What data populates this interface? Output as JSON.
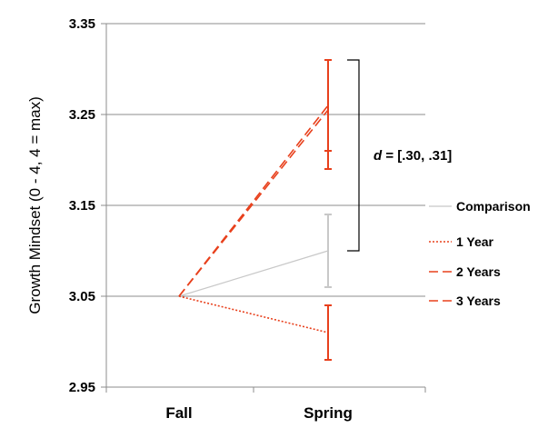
{
  "chart_data": {
    "type": "line",
    "title": "",
    "xlabel": "",
    "ylabel": "Growth Mindset (0 - 4, 4 = max)",
    "categories": [
      "Fall",
      "Spring"
    ],
    "ylim": [
      2.95,
      3.35
    ],
    "yticks": [
      "2.95",
      "3.05",
      "3.15",
      "3.25",
      "3.35"
    ],
    "grid": true,
    "legend": "right",
    "series": [
      {
        "name": "Comparison",
        "values": [
          3.05,
          3.1
        ],
        "error_spring": [
          3.06,
          3.14
        ],
        "color": "#c8c8c8",
        "dash": "solid"
      },
      {
        "name": "1 Year",
        "values": [
          3.05,
          3.01
        ],
        "error_spring": [
          2.98,
          3.04
        ],
        "color": "#e8401c",
        "dash": "dotted"
      },
      {
        "name": "2 Years",
        "values": [
          3.05,
          3.255
        ],
        "error_spring": [
          3.19,
          3.31
        ],
        "color": "#e8401c",
        "dash": "dashed"
      },
      {
        "name": "3 Years",
        "values": [
          3.05,
          3.26
        ],
        "error_spring": [
          3.21,
          3.31
        ],
        "color": "#e8401c",
        "dash": "dashed"
      }
    ],
    "annotation": {
      "prefix": "d",
      "text": " = [.30, .31]",
      "range": [
        3.1,
        3.31
      ]
    }
  }
}
